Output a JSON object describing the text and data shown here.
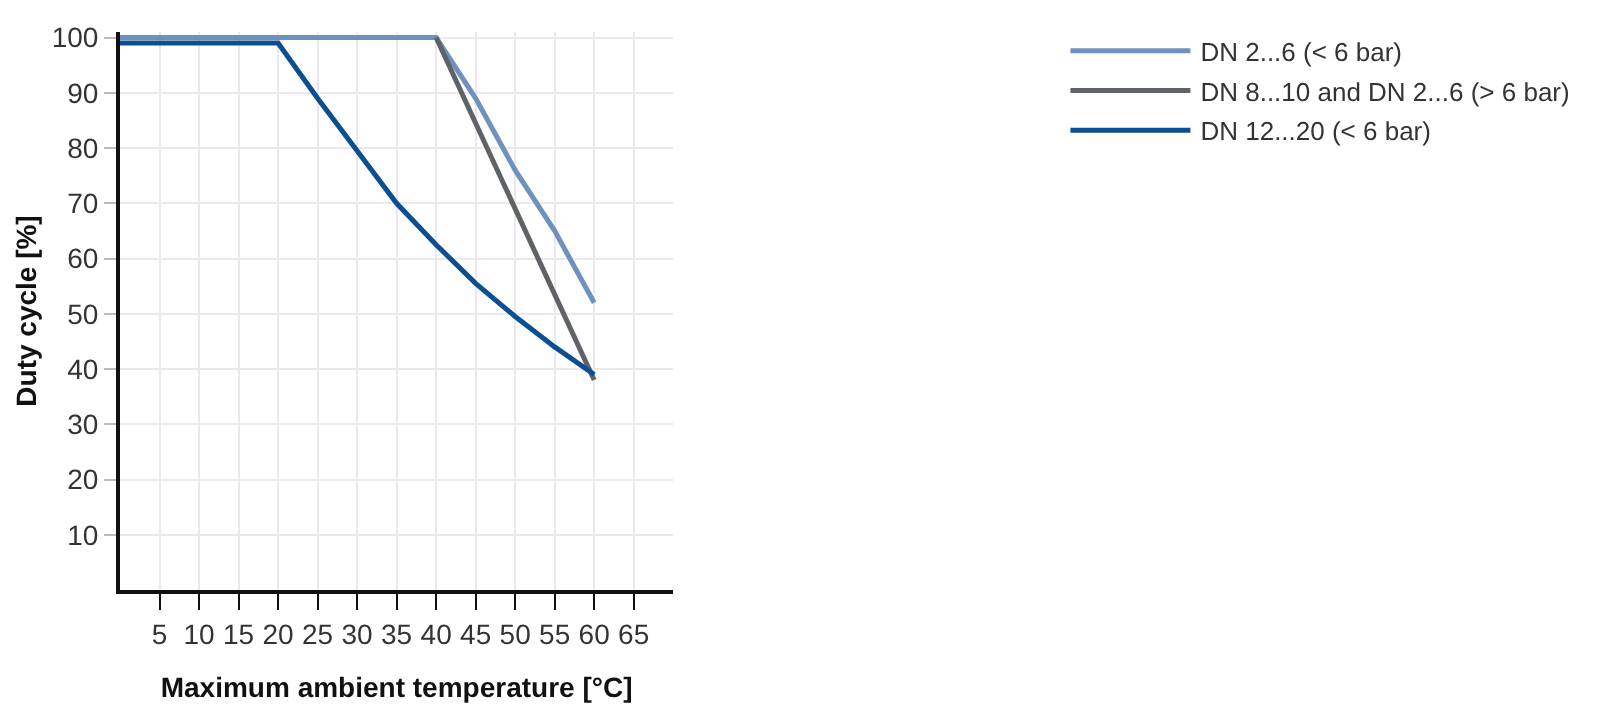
{
  "chart_data": {
    "type": "line",
    "xlabel": "Maximum ambient temperature [°C]",
    "ylabel": "Duty cycle [%]",
    "xlim": [
      0,
      70
    ],
    "xticks": [
      5,
      10,
      15,
      20,
      25,
      30,
      35,
      40,
      45,
      50,
      55,
      60,
      65
    ],
    "ylim": [
      0,
      101
    ],
    "yticks": [
      10,
      20,
      30,
      40,
      50,
      60,
      70,
      80,
      90,
      100
    ],
    "grid": true,
    "legend": "top right",
    "marker": "none",
    "line_style": "solid",
    "series": [
      {
        "name": "DN 2...6 (< 6 bar)",
        "color": "#6f91bd",
        "x": [
          0,
          40,
          45,
          50,
          55,
          60
        ],
        "values": [
          100,
          100,
          89,
          76,
          65,
          52
        ]
      },
      {
        "name": "DN 8...10 and DN 2...6 (> 6 bar)",
        "color": "#5f6368",
        "x": [
          40,
          60
        ],
        "values": [
          100,
          38
        ]
      },
      {
        "name": "DN 12...20 (< 6 bar)",
        "color": "#0b4f92",
        "x": [
          0,
          20,
          25,
          30,
          35,
          40,
          45,
          50,
          55,
          60
        ],
        "values": [
          99,
          99,
          89,
          79.5,
          70,
          62.5,
          55.5,
          49.5,
          44,
          39
        ]
      }
    ]
  }
}
